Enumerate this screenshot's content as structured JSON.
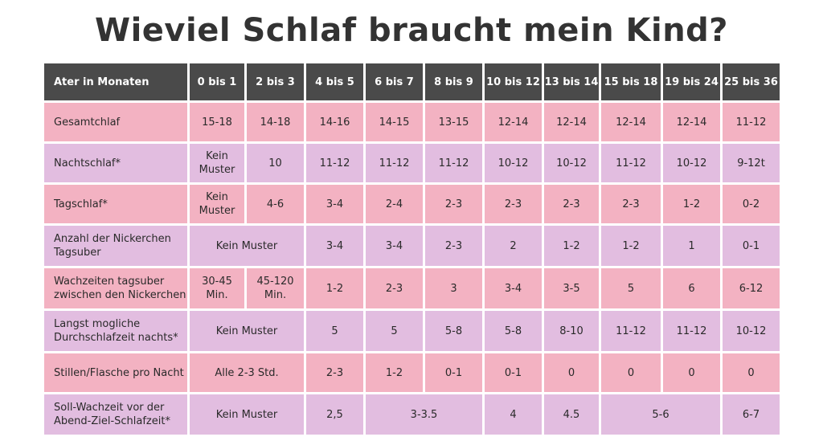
{
  "title": "Wieviel Schlaf braucht mein Kind?",
  "colors": {
    "header_bg": "#4a4a4a",
    "header_text": "#ffffff",
    "row_pink": "#f3b2c2",
    "row_lilac": "#e2bde0",
    "title_text": "#333333"
  },
  "header": {
    "label": "Ater in Monaten",
    "ages": [
      "0 bis 1",
      "2 bis 3",
      "4 bis 5",
      "6 bis 7",
      "8 bis 9",
      "10 bis 12",
      "13 bis 14",
      "15 bis 18",
      "19 bis 24",
      "25 bis 36"
    ]
  },
  "rows": {
    "gesamtschlaf": {
      "label": "Gesamtchlaf",
      "values": [
        "15-18",
        "14-18",
        "14-16",
        "14-15",
        "13-15",
        "12-14",
        "12-14",
        "12-14",
        "12-14",
        "11-12"
      ]
    },
    "nachtschlaf": {
      "label": "Nachtschlaf*",
      "values": [
        "Kein Muster",
        "10",
        "11-12",
        "11-12",
        "11-12",
        "10-12",
        "10-12",
        "11-12",
        "10-12",
        "9-12t"
      ]
    },
    "tagschlaf": {
      "label": "Tagschlaf*",
      "values": [
        "Kein Muster",
        "4-6",
        "3-4",
        "2-4",
        "2-3",
        "2-3",
        "2-3",
        "2-3",
        "1-2",
        "0-2"
      ]
    },
    "nickerchen": {
      "label": "Anzahl der Nickerchen Tagsuber",
      "values": [
        "Kein Muster",
        "3-4",
        "3-4",
        "2-3",
        "2",
        "1-2",
        "1-2",
        "1",
        "0-1"
      ]
    },
    "wachzeiten": {
      "label": "Wachzeiten tagsuber zwischen den Nickerchen",
      "values": [
        "30-45 Min.",
        "45-120 Min.",
        "1-2",
        "2-3",
        "3",
        "3-4",
        "3-5",
        "5",
        "6",
        "6-12"
      ]
    },
    "durchschlafzeit": {
      "label": "Langst mogliche Durchschlafzeit nachts*",
      "values": [
        "Kein Muster",
        "5",
        "5",
        "5-8",
        "5-8",
        "8-10",
        "11-12",
        "11-12",
        "10-12"
      ]
    },
    "stillen": {
      "label": "Stillen/Flasche pro Nacht",
      "values": [
        "Alle 2-3 Std.",
        "2-3",
        "1-2",
        "0-1",
        "0-1",
        "0",
        "0",
        "0",
        "0"
      ]
    },
    "wachzeit_abend": {
      "label": "Soll-Wachzeit vor der Abend-Ziel-Schlafzeit*",
      "values": [
        "Kein Muster",
        "2,5",
        "3-3.5",
        "4",
        "4.5",
        "5-6",
        "6-7"
      ]
    }
  }
}
